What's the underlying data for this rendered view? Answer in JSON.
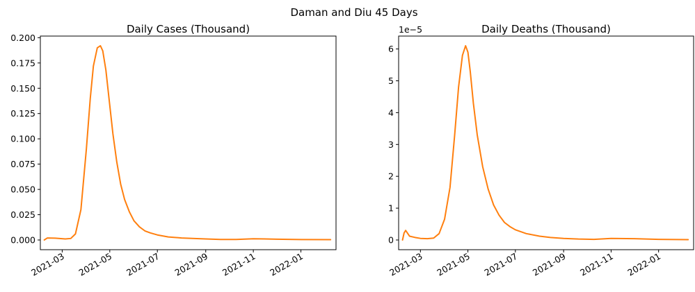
{
  "figure": {
    "suptitle": "Daman and Diu 45 Days"
  },
  "chart_data": [
    {
      "type": "line",
      "title": "Daily Cases (Thousand)",
      "xlabel": "",
      "ylabel": "",
      "x_type": "date",
      "xlim": [
        "2021-02-01",
        "2022-02-15"
      ],
      "ylim": [
        -0.0096,
        0.2016
      ],
      "x_ticks": [
        "2021-03-01",
        "2021-05-01",
        "2021-07-01",
        "2021-09-01",
        "2021-11-01",
        "2022-01-01"
      ],
      "x_tick_labels": [
        "2021-03",
        "2021-05",
        "2021-07",
        "2021-09",
        "2021-11",
        "2022-01"
      ],
      "y_ticks": [
        0,
        0.025,
        0.05,
        0.075,
        0.1,
        0.125,
        0.15,
        0.175,
        0.2
      ],
      "y_tick_labels": [
        "0.000",
        "0.025",
        "0.050",
        "0.075",
        "0.100",
        "0.125",
        "0.150",
        "0.175",
        "0.200"
      ],
      "offset_label": "",
      "grid": false,
      "series": [
        {
          "color": "#ff7f0e",
          "x": [
            "2021-02-06",
            "2021-02-10",
            "2021-02-20",
            "2021-03-05",
            "2021-03-12",
            "2021-03-18",
            "2021-03-25",
            "2021-04-01",
            "2021-04-06",
            "2021-04-10",
            "2021-04-15",
            "2021-04-19",
            "2021-04-22",
            "2021-04-26",
            "2021-04-30",
            "2021-05-05",
            "2021-05-10",
            "2021-05-15",
            "2021-05-20",
            "2021-05-26",
            "2021-06-01",
            "2021-06-08",
            "2021-06-15",
            "2021-06-22",
            "2021-07-01",
            "2021-07-15",
            "2021-08-01",
            "2021-08-15",
            "2021-09-01",
            "2021-09-20",
            "2021-10-10",
            "2021-11-01",
            "2021-12-01",
            "2022-01-01",
            "2022-02-08"
          ],
          "y": [
            0.0,
            0.002,
            0.0018,
            0.001,
            0.0015,
            0.006,
            0.03,
            0.09,
            0.14,
            0.172,
            0.19,
            0.192,
            0.187,
            0.168,
            0.14,
            0.105,
            0.077,
            0.055,
            0.04,
            0.028,
            0.019,
            0.013,
            0.009,
            0.007,
            0.005,
            0.003,
            0.002,
            0.0015,
            0.001,
            0.0005,
            0.0005,
            0.0012,
            0.0008,
            0.0004,
            0.0003
          ]
        }
      ]
    },
    {
      "type": "line",
      "title": "Daily Deaths (Thousand)",
      "xlabel": "",
      "ylabel": "",
      "x_type": "date",
      "xlim": [
        "2021-02-01",
        "2022-02-15"
      ],
      "ylim": [
        -3.05e-06,
        6.405e-05
      ],
      "x_ticks": [
        "2021-03-01",
        "2021-05-01",
        "2021-07-01",
        "2021-09-01",
        "2021-11-01",
        "2022-01-01"
      ],
      "x_tick_labels": [
        "2021-03",
        "2021-05",
        "2021-07",
        "2021-09",
        "2021-11",
        "2022-01"
      ],
      "y_ticks": [
        0,
        1e-05,
        2e-05,
        3e-05,
        4e-05,
        5e-05,
        6e-05
      ],
      "y_tick_labels": [
        "0",
        "1",
        "2",
        "3",
        "4",
        "5",
        "6"
      ],
      "offset_label": "1e−5",
      "grid": false,
      "series": [
        {
          "color": "#ff7f0e",
          "x": [
            "2021-02-06",
            "2021-02-08",
            "2021-02-10",
            "2021-02-15",
            "2021-02-22",
            "2021-03-01",
            "2021-03-10",
            "2021-03-18",
            "2021-03-25",
            "2021-04-01",
            "2021-04-08",
            "2021-04-14",
            "2021-04-19",
            "2021-04-24",
            "2021-04-28",
            "2021-05-01",
            "2021-05-04",
            "2021-05-08",
            "2021-05-13",
            "2021-05-20",
            "2021-05-27",
            "2021-06-03",
            "2021-06-10",
            "2021-06-17",
            "2021-06-24",
            "2021-07-01",
            "2021-07-15",
            "2021-08-01",
            "2021-08-15",
            "2021-09-01",
            "2021-09-20",
            "2021-10-10",
            "2021-11-01",
            "2021-12-01",
            "2022-01-01",
            "2022-02-08"
          ],
          "y": [
            0.0,
            2.2e-06,
            3e-06,
            1.2e-06,
            8e-07,
            5e-07,
            4e-07,
            6e-07,
            2e-06,
            6.5e-06,
            1.65e-05,
            3.3e-05,
            4.8e-05,
            5.8e-05,
            6.1e-05,
            5.9e-05,
            5.3e-05,
            4.3e-05,
            3.3e-05,
            2.3e-05,
            1.6e-05,
            1.1e-05,
            7.8e-06,
            5.5e-06,
            4.2e-06,
            3.2e-06,
            2e-06,
            1.2e-06,
            8e-07,
            5e-07,
            3e-07,
            2e-07,
            5e-07,
            4e-07,
            2e-07,
            1e-07
          ]
        }
      ]
    }
  ]
}
